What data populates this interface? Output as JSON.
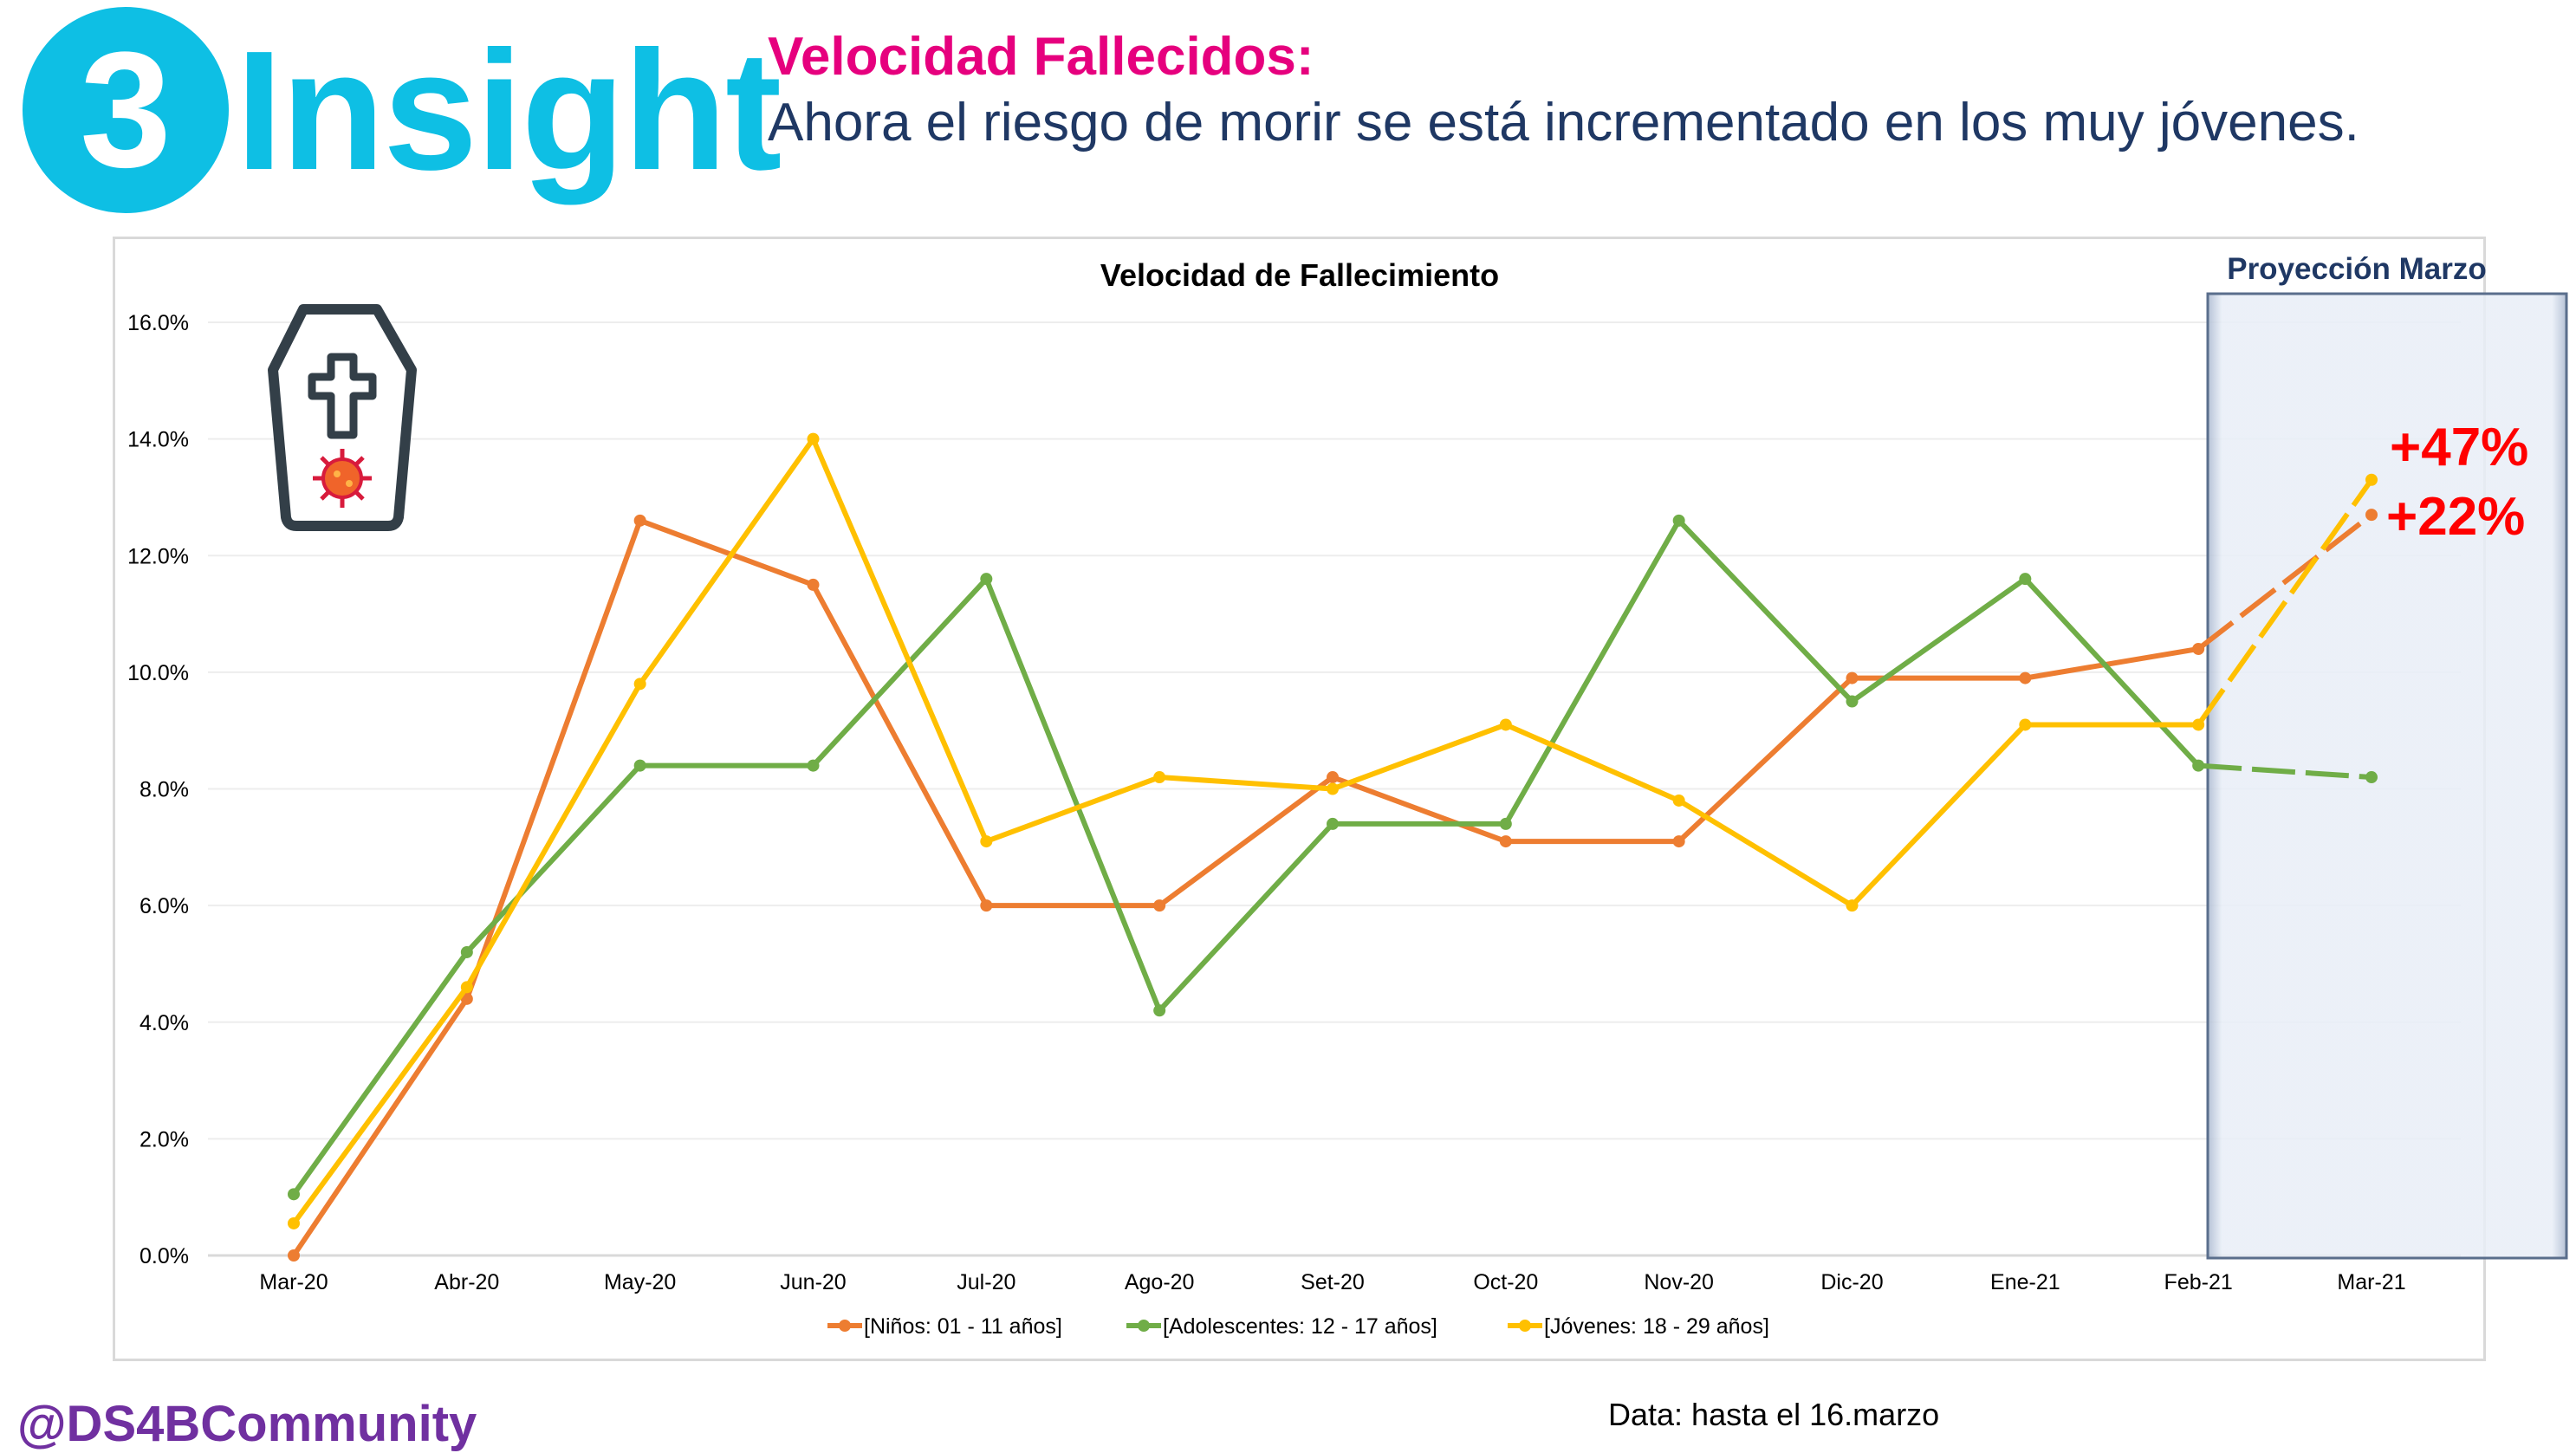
{
  "header": {
    "badge_number": "3",
    "brand": "Insight",
    "title": "Velocidad Fallecidos:",
    "subtitle": "Ahora el riesgo de morir se está incrementado en los muy jóvenes."
  },
  "footer": {
    "handle": "@DS4BCommunity",
    "note": "Data: hasta el 16.marzo"
  },
  "projection": {
    "label": "Proyección Marzo",
    "annotations": [
      "+47%",
      "+22%"
    ]
  },
  "icons": [
    "coffin-cross-icon",
    "virus-icon"
  ],
  "chart_data": {
    "type": "line",
    "title": "Velocidad de Fallecimiento",
    "xlabel": "",
    "ylabel": "",
    "ylim": [
      0,
      16
    ],
    "yticks": [
      "0.0%",
      "2.0%",
      "4.0%",
      "6.0%",
      "8.0%",
      "10.0%",
      "12.0%",
      "14.0%",
      "16.0%"
    ],
    "categories": [
      "Mar-20",
      "Abr-20",
      "May-20",
      "Jun-20",
      "Jul-20",
      "Ago-20",
      "Set-20",
      "Oct-20",
      "Nov-20",
      "Dic-20",
      "Ene-21",
      "Feb-21",
      "Mar-21"
    ],
    "grid": true,
    "legend_position": "bottom",
    "projected_from_index": 11,
    "series": [
      {
        "name": "[Niños: 01 - 11 años]",
        "color": "#ed7d31",
        "values": [
          0.0,
          4.4,
          12.6,
          11.5,
          6.0,
          6.0,
          8.2,
          7.1,
          7.1,
          9.9,
          9.9,
          10.4,
          12.7
        ]
      },
      {
        "name": "[Adolescentes: 12 - 17 años]",
        "color": "#70ad47",
        "values": [
          1.05,
          5.2,
          8.4,
          8.4,
          11.6,
          4.2,
          7.4,
          7.4,
          12.6,
          9.5,
          11.6,
          8.4,
          8.2
        ]
      },
      {
        "name": "[Jóvenes: 18 - 29 años]",
        "color": "#ffc000",
        "values": [
          0.55,
          4.6,
          9.8,
          14.0,
          7.1,
          8.2,
          8.0,
          9.1,
          7.8,
          6.0,
          9.1,
          9.1,
          13.3
        ]
      }
    ]
  }
}
